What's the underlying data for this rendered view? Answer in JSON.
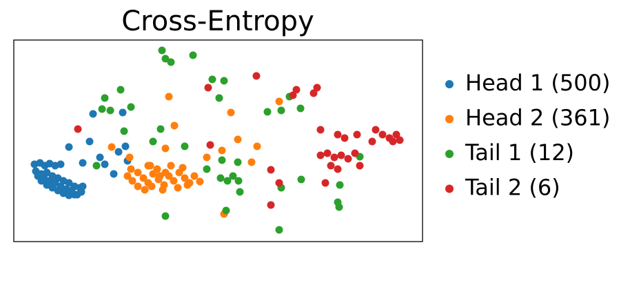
{
  "chart_data": {
    "type": "scatter",
    "title": "Cross-Entropy",
    "xlim": [
      0,
      593
    ],
    "ylim": [
      0,
      292
    ],
    "series": [
      {
        "name": "Head 1 (500)",
        "color": "#1f77b4",
        "x": [
          30,
          38,
          45,
          52,
          60,
          68,
          32,
          40,
          48,
          56,
          64,
          72,
          80,
          88,
          96,
          40,
          48,
          56,
          64,
          72,
          80,
          88,
          98,
          35,
          44,
          52,
          60,
          68,
          76,
          84,
          92,
          100,
          115,
          158,
          110,
          80,
          100,
          125,
          132,
          145,
          152,
          162,
          165
        ],
        "y": [
          112,
          114,
          110,
          113,
          110,
          112,
          102,
          98,
          100,
          95,
          92,
          88,
          85,
          80,
          78,
          88,
          82,
          78,
          74,
          70,
          67,
          68,
          72,
          95,
          92,
          88,
          85,
          80,
          76,
          74,
          68,
          80,
          185,
          187,
          145,
          137,
          114,
          122,
          112,
          98,
          130,
          138,
          117
        ]
      },
      {
        "name": "Head 2 (361)",
        "color": "#ff7f0e",
        "x": [
          165,
          172,
          180,
          188,
          195,
          202,
          210,
          218,
          225,
          232,
          240,
          248,
          255,
          262,
          270,
          170,
          180,
          190,
          200,
          208,
          216,
          228,
          238,
          245,
          252,
          220,
          212,
          198,
          225,
          233,
          220,
          195,
          302,
          280,
          315,
          325,
          353,
          345,
          385,
          305,
          142,
          168
        ],
        "y": [
          95,
          88,
          100,
          92,
          85,
          98,
          90,
          82,
          95,
          88,
          100,
          92,
          85,
          95,
          87,
          105,
          80,
          75,
          80,
          105,
          75,
          110,
          78,
          107,
          82,
          100,
          95,
          110,
          210,
          168,
          135,
          110,
          132,
          122,
          187,
          148,
          138,
          115,
          203,
          40,
          137,
          122
        ]
      },
      {
        "name": "Tail 1 (12)",
        "color": "#2ca02c",
        "x": [
          215,
          220,
          228,
          260,
          132,
          155,
          170,
          140,
          128,
          160,
          213,
          248,
          202,
          288,
          305,
          298,
          368,
          388,
          400,
          416,
          280,
          300,
          310,
          318,
          326,
          302,
          325,
          328,
          220,
          308,
          385,
          417,
          388,
          473,
          470,
          472,
          502,
          120
        ],
        "y": [
          277,
          265,
          260,
          270,
          208,
          220,
          195,
          190,
          192,
          160,
          163,
          138,
          145,
          235,
          233,
          208,
          188,
          190,
          210,
          193,
          105,
          92,
          88,
          95,
          88,
          118,
          115,
          72,
          37,
          45,
          17,
          90,
          78,
          82,
          57,
          50,
          123,
          110
        ]
      },
      {
        "name": "Tail 2 (6)",
        "color": "#d62728",
        "x": [
          93,
          352,
          282,
          410,
          405,
          440,
          435,
          445,
          470,
          480,
          498,
          525,
          535,
          545,
          555,
          560,
          550,
          520,
          445,
          455,
          465,
          475,
          485,
          495,
          460,
          470,
          502,
          373,
          385,
          452,
          373,
          285
        ],
        "y": [
          163,
          240,
          223,
          220,
          212,
          223,
          215,
          162,
          155,
          150,
          155,
          162,
          155,
          150,
          155,
          147,
          145,
          145,
          125,
          128,
          122,
          125,
          120,
          128,
          110,
          105,
          110,
          104,
          85,
          85,
          53,
          140
        ]
      }
    ]
  }
}
